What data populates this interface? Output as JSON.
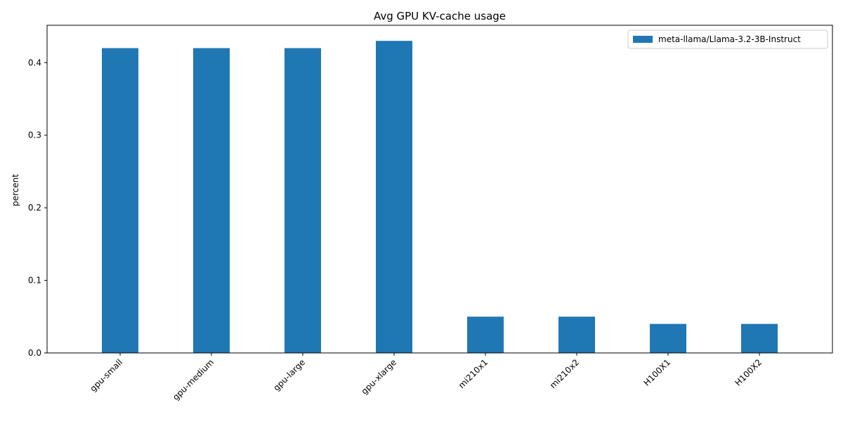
{
  "chart_data": {
    "type": "bar",
    "title": "Avg GPU KV-cache usage",
    "xlabel": "",
    "ylabel": "percent",
    "categories": [
      "gpu-small",
      "gpu-medium",
      "gpu-large",
      "gpu-xlarge",
      "mi210x1",
      "mi210x2",
      "H100X1",
      "H100X2"
    ],
    "series": [
      {
        "name": "meta-llama/Llama-3.2-3B-Instruct",
        "color": "#1f77b4",
        "values": [
          0.42,
          0.42,
          0.42,
          0.43,
          0.05,
          0.05,
          0.04,
          0.04
        ]
      }
    ],
    "ylim": [
      0,
      0.4515
    ],
    "yticks": [
      0.0,
      0.1,
      0.2,
      0.3,
      0.4
    ],
    "ytick_labels": [
      "0.0",
      "0.1",
      "0.2",
      "0.3",
      "0.4"
    ],
    "xtick_rotation": 45,
    "grid": false,
    "legend_position": "top-right"
  }
}
